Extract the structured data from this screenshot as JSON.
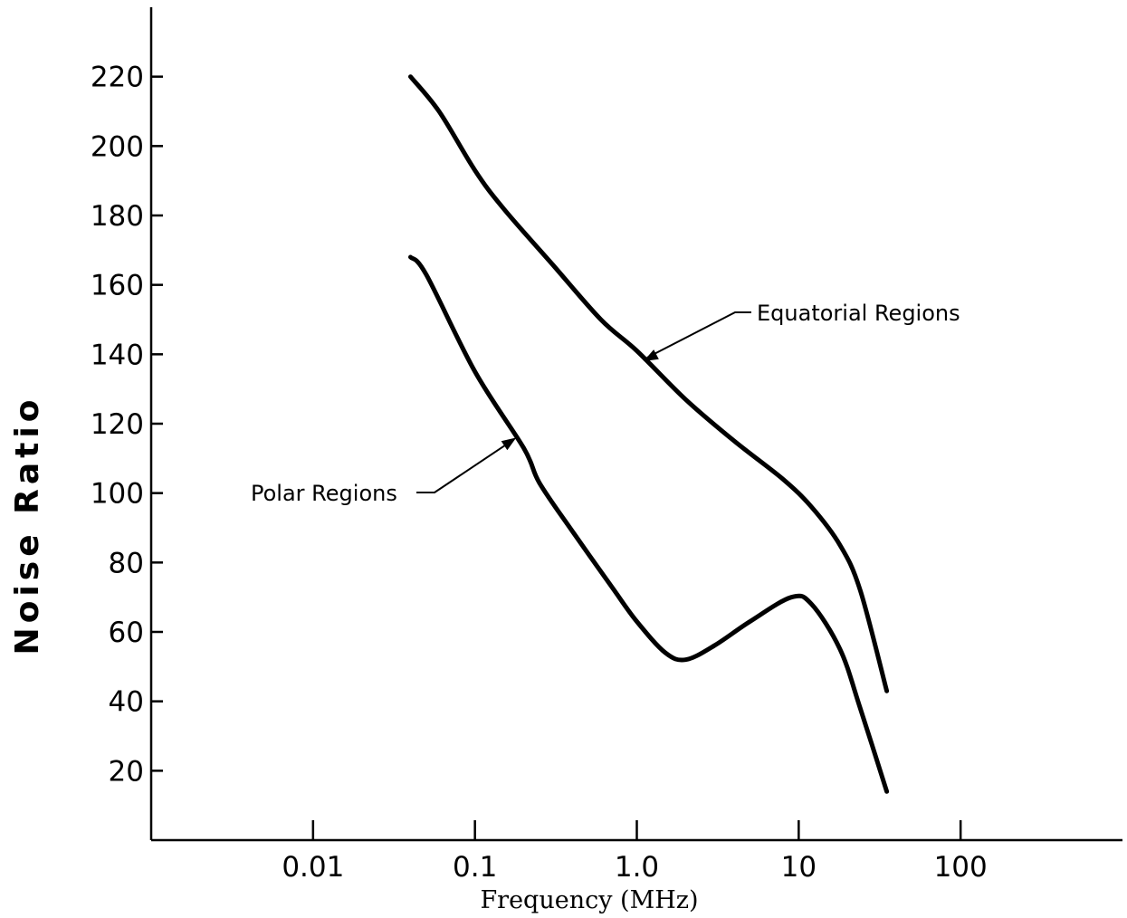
{
  "chart_data": {
    "type": "line",
    "xlabel": "Frequency (MHz)",
    "ylabel": "Noise Ratio",
    "xscale": "log",
    "xlim": [
      0.001,
      1000
    ],
    "ylim": [
      0,
      240
    ],
    "x_tick_values": [
      0.01,
      0.1,
      1.0,
      10,
      100
    ],
    "x_tick_labels": [
      "0.01",
      "0.1",
      "1.0",
      "10",
      "100"
    ],
    "y_ticks": [
      20,
      40,
      60,
      80,
      100,
      120,
      140,
      160,
      180,
      200,
      220
    ],
    "grid": false,
    "legend": "none",
    "series": [
      {
        "name": "Equatorial Regions",
        "x": [
          0.04,
          0.06,
          0.1,
          0.15,
          0.3,
          0.6,
          1.0,
          2.0,
          4.0,
          8.0,
          12.0,
          18.0,
          24.0,
          35.0
        ],
        "y": [
          220,
          210,
          193,
          182,
          166,
          150,
          141,
          127,
          115,
          104,
          96,
          85,
          72,
          43
        ]
      },
      {
        "name": "Polar Regions",
        "x": [
          0.04,
          0.05,
          0.1,
          0.2,
          0.25,
          0.4,
          0.7,
          1.0,
          1.5,
          2.0,
          3.0,
          5.0,
          9.0,
          12.0,
          18.0,
          24.0,
          35.0
        ],
        "y": [
          168,
          163,
          135,
          113,
          103,
          89,
          73,
          63,
          54,
          52,
          56,
          63,
          70,
          68,
          55,
          38,
          14
        ]
      }
    ],
    "annotations": [
      {
        "text": "Equatorial Regions",
        "series": 0,
        "x": 1.1,
        "y": 138
      },
      {
        "text": "Polar Regions",
        "series": 1,
        "x": 0.18,
        "y": 116
      }
    ]
  }
}
